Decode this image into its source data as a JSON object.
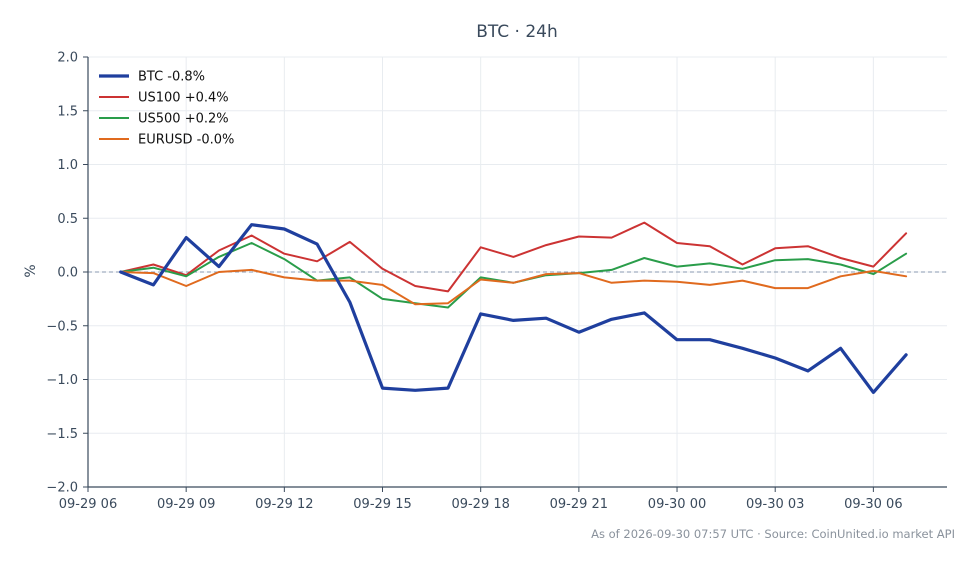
{
  "chart_data": {
    "type": "line",
    "title": "BTC · 24h",
    "xlabel": "",
    "ylabel": "%",
    "ylim": [
      -2.0,
      2.0
    ],
    "yticks": [
      -2.0,
      -1.5,
      -1.0,
      -0.5,
      0.0,
      0.5,
      1.0,
      1.5,
      2.0
    ],
    "ytick_labels": [
      "−2.0",
      "−1.5",
      "−1.0",
      "−0.5",
      "0.0",
      "0.5",
      "1.0",
      "1.5",
      "2.0"
    ],
    "xlim": [
      "2026-09-29 06:00",
      "2026-09-30 08:15"
    ],
    "xtick_labels": [
      "09-29 06",
      "09-29 09",
      "09-29 12",
      "09-29 15",
      "09-29 18",
      "09-29 21",
      "09-30 00",
      "09-30 03",
      "09-30 06"
    ],
    "xticks": [
      "2026-09-29 06:00",
      "2026-09-29 09:00",
      "2026-09-29 12:00",
      "2026-09-29 15:00",
      "2026-09-29 18:00",
      "2026-09-29 21:00",
      "2026-09-30 00:00",
      "2026-09-30 03:00",
      "2026-09-30 06:00"
    ],
    "x": [
      "2026-09-29 07:00",
      "2026-09-29 08:00",
      "2026-09-29 09:00",
      "2026-09-29 10:00",
      "2026-09-29 11:00",
      "2026-09-29 12:00",
      "2026-09-29 13:00",
      "2026-09-29 14:00",
      "2026-09-29 15:00",
      "2026-09-29 16:00",
      "2026-09-29 17:00",
      "2026-09-29 18:00",
      "2026-09-29 19:00",
      "2026-09-29 20:00",
      "2026-09-29 21:00",
      "2026-09-29 22:00",
      "2026-09-29 23:00",
      "2026-09-30 00:00",
      "2026-09-30 01:00",
      "2026-09-30 02:00",
      "2026-09-30 03:00",
      "2026-09-30 04:00",
      "2026-09-30 05:00",
      "2026-09-30 06:00",
      "2026-09-30 07:00"
    ],
    "series": [
      {
        "name": "BTC -0.8%",
        "color": "#1f3f9e",
        "values": [
          0.0,
          -0.12,
          0.32,
          0.05,
          0.44,
          0.4,
          0.26,
          -0.28,
          -1.08,
          -1.1,
          -1.08,
          -0.39,
          -0.45,
          -0.43,
          -0.56,
          -0.44,
          -0.38,
          -0.63,
          -0.63,
          -0.71,
          -0.8,
          -0.92,
          -0.71,
          -1.12,
          -0.77
        ]
      },
      {
        "name": "US100 +0.4%",
        "color": "#cc3333",
        "values": [
          0.0,
          0.07,
          -0.03,
          0.2,
          0.34,
          0.17,
          0.1,
          0.28,
          0.03,
          -0.13,
          -0.18,
          0.23,
          0.14,
          0.25,
          0.33,
          0.32,
          0.46,
          0.27,
          0.24,
          0.07,
          0.22,
          0.24,
          0.13,
          0.05,
          0.36
        ]
      },
      {
        "name": "US500 +0.2%",
        "color": "#2a9d4a",
        "values": [
          0.0,
          0.04,
          -0.04,
          0.14,
          0.27,
          0.12,
          -0.08,
          -0.05,
          -0.25,
          -0.29,
          -0.33,
          -0.05,
          -0.1,
          -0.03,
          -0.01,
          0.02,
          0.13,
          0.05,
          0.08,
          0.03,
          0.11,
          0.12,
          0.07,
          -0.02,
          0.17
        ]
      },
      {
        "name": "EURUSD -0.0%",
        "color": "#e06a1e",
        "values": [
          0.0,
          -0.01,
          -0.13,
          0.0,
          0.02,
          -0.05,
          -0.08,
          -0.08,
          -0.12,
          -0.3,
          -0.29,
          -0.07,
          -0.1,
          -0.02,
          -0.01,
          -0.1,
          -0.08,
          -0.09,
          -0.12,
          -0.08,
          -0.15,
          -0.15,
          -0.04,
          0.01,
          -0.04
        ]
      }
    ],
    "reference_line": 0.0,
    "grid": true,
    "legend_position": "top-left"
  },
  "footer": "As of 2026-09-30 07:57 UTC · Source: CoinUnited.io market API",
  "colors": {
    "axis": "#3a4a5c",
    "grid": "#e8ecf0",
    "zero_line": "#8a9ab0"
  }
}
